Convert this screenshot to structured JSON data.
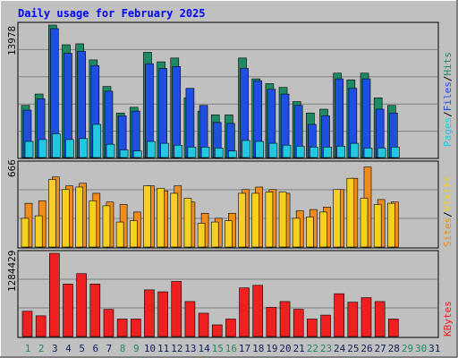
{
  "chart_data": [
    {
      "type": "bar",
      "title": "Daily usage for February 2025",
      "panel": "pages-files-hits",
      "categories": [
        "1",
        "2",
        "3",
        "4",
        "5",
        "6",
        "7",
        "8",
        "9",
        "10",
        "11",
        "12",
        "13",
        "14",
        "15",
        "16",
        "17",
        "18",
        "19",
        "20",
        "21",
        "22",
        "23",
        "24",
        "25",
        "26",
        "27",
        "28",
        "29",
        "30",
        "31"
      ],
      "y_max_label": "13978",
      "ylim": [
        0,
        13978
      ],
      "series": [
        {
          "name": "Hits",
          "color": "#1d8a64",
          "values": [
            5500,
            6700,
            13978,
            11900,
            12000,
            10300,
            7500,
            4700,
            5300,
            11100,
            10100,
            10500,
            6300,
            4900,
            4500,
            4500,
            10500,
            8300,
            7800,
            7400,
            5900,
            4700,
            5100,
            8900,
            8200,
            8900,
            6300,
            5500,
            0,
            0,
            0
          ]
        },
        {
          "name": "Files",
          "color": "#1f4fe0",
          "values": [
            5000,
            6200,
            13600,
            11000,
            11200,
            9700,
            7000,
            4400,
            4900,
            9900,
            9400,
            9600,
            7300,
            5500,
            3700,
            3600,
            9400,
            8100,
            7200,
            6700,
            5500,
            3500,
            4400,
            8300,
            7300,
            8300,
            5100,
            4700,
            0,
            0,
            0
          ]
        },
        {
          "name": "Pages",
          "color": "#22c8e0",
          "values": [
            1700,
            1900,
            2500,
            1900,
            2000,
            3500,
            1400,
            800,
            700,
            1700,
            1500,
            1300,
            1100,
            1100,
            1000,
            700,
            1800,
            1700,
            1500,
            1300,
            1200,
            1100,
            1100,
            1200,
            1500,
            1000,
            1000,
            1100,
            0,
            0,
            0
          ]
        }
      ]
    },
    {
      "type": "bar",
      "panel": "sites-visits",
      "categories": [
        "1",
        "2",
        "3",
        "4",
        "5",
        "6",
        "7",
        "8",
        "9",
        "10",
        "11",
        "12",
        "13",
        "14",
        "15",
        "16",
        "17",
        "18",
        "19",
        "20",
        "21",
        "22",
        "23",
        "24",
        "25",
        "26",
        "27",
        "28",
        "29",
        "30",
        "31"
      ],
      "y_max_label": "666",
      "ylim": [
        0,
        666
      ],
      "series": [
        {
          "name": "Visits",
          "color": "#f5d020",
          "values": [
            230,
            250,
            540,
            460,
            480,
            370,
            330,
            200,
            210,
            490,
            470,
            430,
            390,
            190,
            200,
            210,
            430,
            430,
            440,
            440,
            230,
            240,
            280,
            460,
            550,
            390,
            340,
            350,
            0,
            0,
            0
          ]
        },
        {
          "name": "Sites",
          "color": "#f08c1e",
          "values": [
            350,
            370,
            560,
            490,
            510,
            430,
            360,
            340,
            280,
            490,
            450,
            490,
            360,
            270,
            230,
            270,
            460,
            480,
            460,
            430,
            290,
            300,
            320,
            460,
            550,
            640,
            380,
            360,
            0,
            0,
            0
          ]
        }
      ]
    },
    {
      "type": "bar",
      "panel": "kbytes",
      "categories": [
        "1",
        "2",
        "3",
        "4",
        "5",
        "6",
        "7",
        "8",
        "9",
        "10",
        "11",
        "12",
        "13",
        "14",
        "15",
        "16",
        "17",
        "18",
        "19",
        "20",
        "21",
        "22",
        "23",
        "24",
        "25",
        "26",
        "27",
        "28",
        "29",
        "30",
        "31"
      ],
      "y_max_label": "1284429",
      "ylim": [
        0,
        1284429
      ],
      "series": [
        {
          "name": "KBytes",
          "color": "#ee2020",
          "values": [
            390000,
            320000,
            1284429,
            810000,
            970000,
            810000,
            420000,
            270000,
            270000,
            720000,
            690000,
            850000,
            540000,
            360000,
            180000,
            270000,
            750000,
            790000,
            450000,
            540000,
            420000,
            270000,
            330000,
            660000,
            530000,
            600000,
            540000,
            270000,
            0,
            0,
            0
          ]
        }
      ]
    }
  ],
  "axis": {
    "weekend_days": [
      "1",
      "2",
      "8",
      "9",
      "15",
      "16",
      "22",
      "23",
      "29",
      "30"
    ],
    "weekday_color": "#0f1e5a",
    "weekend_color": "#1d8a64"
  },
  "labels": {
    "pages": "Pages",
    "files": "Files",
    "hits": "Hits",
    "sites": "Sites",
    "visits": "Visits",
    "kbytes": "KBytes",
    "separator": "/"
  },
  "colors": {
    "background": "#c0c0c0",
    "title": "#0000ff",
    "grid": "#808080"
  }
}
